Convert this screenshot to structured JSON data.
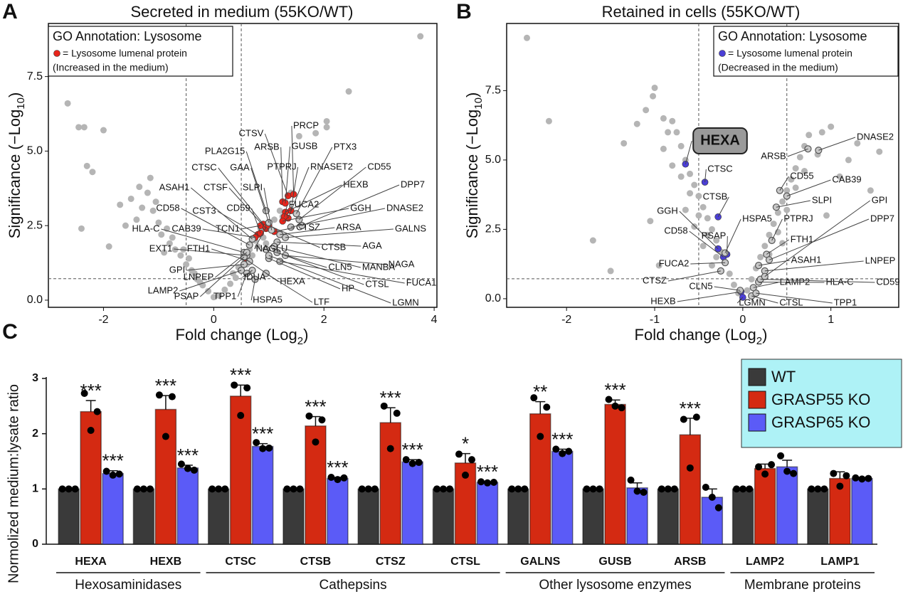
{
  "chart_data": [
    {
      "type": "scatter",
      "panel": "A",
      "title": "Secreted in medium (55KO/WT)",
      "x_label": [
        "Fold change (Log",
        "2",
        ")"
      ],
      "y_label": [
        "Significance (−Log",
        "10",
        ")"
      ],
      "xlim": [
        -3,
        4.05
      ],
      "ylim": [
        -0.24,
        9.28
      ],
      "xticks": [
        -2,
        0,
        2,
        4
      ],
      "yticks": [
        {
          "value": 0,
          "label": "0.0"
        },
        2.5,
        {
          "value": 5,
          "label": "5.0"
        },
        7.5
      ],
      "vlines": [
        -0.5,
        0.5
      ],
      "hline": 0.72,
      "legend": {
        "title": "GO Annotation: Lysosome",
        "entry": "= Lysosome lumenal protein",
        "note": "(Increased in the medium)"
      },
      "series": [
        {
          "color": "#b5b5b5",
          "marker": "filled",
          "x": [
            -2.65,
            -2.45,
            -2.35,
            -2.0,
            -2.3,
            -2.2,
            -2.4,
            -1.9,
            -1.15,
            3.75,
            2.45,
            2.05,
            2.05,
            1.85,
            1.55,
            -1.5,
            -1.3,
            -1.4,
            -1.2,
            -1.1,
            -1.0,
            -0.95,
            -0.8,
            -0.7,
            -0.6,
            -0.5,
            -0.4,
            -0.3,
            -0.2,
            -0.1,
            0.0,
            -0.85,
            -1.05,
            -0.75,
            -0.55,
            -0.45,
            -0.35,
            -0.25,
            0.1,
            0.2,
            0.3,
            0.4,
            0.5,
            0.6,
            0.7,
            0.8,
            0.9,
            1.0,
            1.1,
            1.2,
            1.3,
            0.65,
            0.75,
            0.85,
            0.55,
            1.4,
            1.25,
            0.95,
            -1.6,
            -1.7,
            -1.35,
            -0.9,
            0.35,
            0.45
          ],
          "y": [
            6.6,
            5.8,
            5.8,
            5.7,
            4.5,
            4.3,
            2.4,
            1.8,
            4.1,
            8.85,
            7.0,
            6.0,
            5.8,
            5.6,
            5.5,
            3.4,
            3.1,
            2.7,
            3.6,
            3.0,
            2.6,
            2.2,
            1.9,
            1.7,
            1.5,
            1.2,
            1.0,
            0.7,
            0.5,
            0.3,
            0.1,
            2.4,
            3.3,
            2.1,
            1.7,
            1.4,
            0.9,
            0.6,
            0.15,
            0.35,
            0.55,
            0.75,
            1.0,
            1.2,
            1.5,
            1.8,
            2.1,
            2.4,
            2.7,
            3.0,
            3.3,
            1.7,
            2.0,
            2.4,
            1.4,
            3.6,
            2.8,
            1.9,
            2.5,
            3.2,
            3.8,
            1.6,
            0.9,
            1.1
          ]
        },
        {
          "color": "#e8251b",
          "marker": "filled",
          "labels": [
            "CTSV",
            "PRCP",
            "ARSB",
            "GUSB",
            "PTPRJ",
            "RNASET2",
            "HEXB",
            "CTSC",
            "CTSF",
            "FUCA2",
            "GGH",
            "CST3",
            "CD59",
            "CTSZ",
            "CAB39",
            "TCN1",
            "NAGLU",
            "CTSB",
            "HEXA"
          ],
          "x": [
            1.35,
            1.45,
            1.25,
            1.3,
            1.4,
            1.35,
            1.3,
            0.9,
            0.95,
            1.28,
            1.25,
            0.8,
            0.85,
            1.1,
            0.75,
            0.85,
            0.95,
            1.0,
            0.6
          ],
          "y": [
            3.5,
            3.55,
            3.3,
            3.25,
            3.0,
            2.75,
            2.95,
            2.55,
            2.4,
            2.8,
            2.65,
            2.2,
            2.25,
            2.3,
            2.1,
            2.5,
            2.45,
            2.5,
            1.35
          ]
        },
        {
          "color": "#c8c8c8",
          "marker": "open",
          "labels": [
            "PLA2G15",
            "PTX3",
            "CD55",
            "DPP7",
            "GAA",
            "ASAH1",
            "SLPI",
            "DNASE2",
            "CD58",
            "ARSA",
            "GALNS",
            "HLA-C",
            "EXT1",
            "FTH1",
            "AGA",
            "NAGA",
            "GPI",
            "CLN5",
            "MANBA",
            "FUCA1",
            "LAMP2",
            "LNPEP",
            "IDUA",
            "HP",
            "CTSL",
            "PSAP",
            "TPP1",
            "HSPA5",
            "LTF",
            "LGMN"
          ],
          "x": [
            0.95,
            1.5,
            1.55,
            1.6,
            1.0,
            0.7,
            1.05,
            1.4,
            0.65,
            1.2,
            1.3,
            0.55,
            0.6,
            0.65,
            1.15,
            1.3,
            0.55,
            0.95,
            1.1,
            1.2,
            0.5,
            0.6,
            0.7,
            1.0,
            1.15,
            0.55,
            0.6,
            0.75,
            0.95,
            1.0
          ],
          "y": [
            3.0,
            2.9,
            2.7,
            2.5,
            2.6,
            2.05,
            2.35,
            2.45,
            1.85,
            2.2,
            2.1,
            1.6,
            1.5,
            1.3,
            1.95,
            1.5,
            1.2,
            1.7,
            1.8,
            1.3,
            1.0,
            1.6,
            1.0,
            1.4,
            1.6,
            1.45,
            0.9,
            0.7,
            0.9,
            1.5
          ]
        }
      ]
    },
    {
      "type": "scatter",
      "panel": "B",
      "title": "Retained in cells (55KO/WT)",
      "x_label": [
        "Fold change (Log",
        "2",
        ")"
      ],
      "y_label": [
        "Significance (−Log",
        "10",
        ")"
      ],
      "xlim": [
        -2.68,
        1.77
      ],
      "ylim": [
        -0.31,
        9.92
      ],
      "xticks": [
        -2,
        -1,
        0,
        1
      ],
      "yticks": [
        {
          "value": 0,
          "label": "0.0"
        },
        2.5,
        {
          "value": 5,
          "label": "5.0"
        },
        7.5
      ],
      "vlines": [
        -0.5,
        0.5
      ],
      "hline": 0.72,
      "legend": {
        "title": "GO Annotation: Lysosome",
        "entry": "= Lysosome lumenal protein",
        "note": "(Decreased in the medium)"
      },
      "series": [
        {
          "color": "#b5b5b5",
          "marker": "filled",
          "x": [
            -0.05,
            -0.1,
            -0.15,
            -0.2,
            -0.25,
            -0.3,
            -0.35,
            -0.4,
            -0.45,
            -0.5,
            -0.55,
            -0.6,
            -0.65,
            -0.7,
            -0.75,
            -0.8,
            -0.3,
            -0.4,
            -0.5,
            -0.6,
            -0.7,
            -0.55,
            -0.45,
            -0.35,
            -0.65,
            -0.8,
            -0.9,
            -2.45,
            -2.2,
            -1.0,
            -1.02,
            -1.1,
            -1.2,
            -1.35,
            -0.9,
            -0.85,
            -1.5,
            -1.7,
            -1.05,
            -0.95,
            0.05,
            0.1,
            0.15,
            0.2,
            0.25,
            0.3,
            0.35,
            0.4,
            0.45,
            0.5,
            0.55,
            0.6,
            0.65,
            0.7,
            0.75,
            0.3,
            0.4,
            0.5,
            0.6,
            0.7,
            0.45,
            0.85,
            1.55,
            1.3,
            1.2,
            1.0,
            0.9,
            1.1,
            1.45,
            0.95
          ],
          "y": [
            0.2,
            0.5,
            0.9,
            1.3,
            1.7,
            2.1,
            2.5,
            2.9,
            3.3,
            3.7,
            4.1,
            4.5,
            5.0,
            5.5,
            6.0,
            6.4,
            1.5,
            2.3,
            3.0,
            3.8,
            4.4,
            2.6,
            1.9,
            1.2,
            3.2,
            4.8,
            5.4,
            9.4,
            6.4,
            7.6,
            7.3,
            6.8,
            6.3,
            5.6,
            6.5,
            6.0,
            1.0,
            2.1,
            2.8,
            1.2,
            0.3,
            0.7,
            1.1,
            1.5,
            1.9,
            2.3,
            2.7,
            3.1,
            3.5,
            3.9,
            4.3,
            4.7,
            5.1,
            5.5,
            5.9,
            1.6,
            2.4,
            3.2,
            4.0,
            4.6,
            2.0,
            5.2,
            5.3,
            5.6,
            5.0,
            6.2,
            6.0,
            4.4,
            3.9,
            3.0
          ]
        },
        {
          "color": "#4b3fd6",
          "marker": "filled",
          "labels": [
            "HEXA",
            "CTSC",
            "CTSB",
            "GGH",
            "CD58",
            "PSAP",
            "HEXB",
            "LGMN"
          ],
          "x": [
            -0.65,
            -0.43,
            -0.28,
            -0.28,
            -0.22,
            -0.18,
            -0.02,
            0.0
          ],
          "y": [
            4.85,
            4.2,
            2.95,
            1.8,
            1.5,
            1.6,
            0.25,
            0.05
          ]
        },
        {
          "color": "#c8c8c8",
          "marker": "open",
          "labels": [
            "HSPA5",
            "FUCA2",
            "CTSZ",
            "CLN5",
            "CTSL",
            "TPP1",
            "LAMP2",
            "HLA-C",
            "CD59",
            "LNPEP",
            "ASAH1",
            "FTH1",
            "PTPRJ",
            "DPP7",
            "GPI",
            "SLPI",
            "CAB39",
            "CD55",
            "ARSB",
            "DNASE2"
          ],
          "x": [
            -0.2,
            -0.2,
            -0.25,
            -0.03,
            0.1,
            0.15,
            0.12,
            0.18,
            0.2,
            0.25,
            0.18,
            0.27,
            0.33,
            0.3,
            0.25,
            0.38,
            0.5,
            0.42,
            0.74,
            0.86
          ],
          "y": [
            1.65,
            1.3,
            1.0,
            0.3,
            0.1,
            0.2,
            0.4,
            0.6,
            0.7,
            1.0,
            1.2,
            1.6,
            2.1,
            1.4,
            0.8,
            3.3,
            3.7,
            3.9,
            5.4,
            5.35
          ]
        }
      ]
    },
    {
      "type": "bar",
      "panel": "C",
      "y_label": "Normolized medium:lysate ratio",
      "categories": [
        "HEXA",
        "HEXB",
        "CTSC",
        "CTSB",
        "CTSZ",
        "CTSL",
        "GALNS",
        "GUSB",
        "ARSB",
        "LAMP2",
        "LAMP1"
      ],
      "groups": [
        {
          "name": "Hexosaminidases",
          "categories": [
            "HEXA",
            "HEXB"
          ]
        },
        {
          "name": "Cathepsins",
          "categories": [
            "CTSC",
            "CTSB",
            "CTSZ",
            "CTSL"
          ]
        },
        {
          "name": "Other lysosome enzymes",
          "categories": [
            "GALNS",
            "GUSB",
            "ARSB"
          ]
        },
        {
          "name": "Membrane proteins",
          "categories": [
            "LAMP2",
            "LAMP1"
          ]
        }
      ],
      "ylim": [
        0,
        3
      ],
      "yticks": [
        0,
        1,
        2,
        3
      ],
      "legend": "upper right",
      "series": [
        {
          "name": "WT",
          "color": "#3a3a3a",
          "values": [
            1,
            1,
            1,
            1,
            1,
            1,
            1,
            1,
            1,
            1,
            1
          ],
          "points": [
            [
              1,
              1,
              1
            ],
            [
              1,
              1,
              1
            ],
            [
              1,
              1,
              1
            ],
            [
              1,
              1,
              1
            ],
            [
              1,
              1,
              1
            ],
            [
              1,
              1,
              1
            ],
            [
              1,
              1,
              1
            ],
            [
              1,
              1,
              1
            ],
            [
              1,
              1,
              1
            ],
            [
              1,
              1,
              1
            ],
            [
              1,
              1,
              1
            ]
          ]
        },
        {
          "name": "GRASP55 KO",
          "color": "#d42a12",
          "values": [
            2.4,
            2.44,
            2.68,
            2.14,
            2.2,
            1.47,
            2.36,
            2.53,
            1.98,
            1.37,
            1.19
          ],
          "errors": [
            0.2,
            0.25,
            0.2,
            0.17,
            0.27,
            0.17,
            0.22,
            0.08,
            0.3,
            0.08,
            0.12
          ],
          "points": [
            [
              2.73,
              2.06,
              2.4
            ],
            [
              2.7,
              1.95,
              2.67
            ],
            [
              2.88,
              2.33,
              2.83
            ],
            [
              2.32,
              1.85,
              2.25
            ],
            [
              2.5,
              1.73,
              2.37
            ],
            [
              1.63,
              1.25,
              1.53
            ],
            [
              2.65,
              1.95,
              2.48
            ],
            [
              2.62,
              2.5,
              2.47
            ],
            [
              2.26,
              1.38,
              2.3
            ],
            [
              1.4,
              1.27,
              1.44
            ],
            [
              1.28,
              1.05,
              1.24
            ]
          ],
          "significance": [
            "***",
            "***",
            "***",
            "***",
            "***",
            "*",
            "**",
            "***",
            "***",
            null,
            null
          ]
        },
        {
          "name": "GRASP65 KO",
          "color": "#5b5bf7",
          "values": [
            1.28,
            1.38,
            1.77,
            1.19,
            1.49,
            1.12,
            1.68,
            1.02,
            0.85,
            1.4,
            1.19
          ],
          "errors": [
            0.05,
            0.05,
            0.05,
            0.02,
            0.04,
            0.01,
            0.04,
            0.09,
            0.15,
            0.12,
            0.02
          ],
          "points": [
            [
              1.32,
              1.25,
              1.27
            ],
            [
              1.45,
              1.37,
              1.34
            ],
            [
              1.84,
              1.73,
              1.74
            ],
            [
              1.21,
              1.17,
              1.2
            ],
            [
              1.53,
              1.46,
              1.48
            ],
            [
              1.13,
              1.11,
              1.12
            ],
            [
              1.72,
              1.64,
              1.68
            ],
            [
              1.16,
              0.96,
              0.94
            ],
            [
              1.03,
              0.85,
              0.66
            ],
            [
              1.6,
              1.32,
              1.28
            ],
            [
              1.2,
              1.18,
              1.19
            ]
          ],
          "significance": [
            "***",
            "***",
            "***",
            "***",
            "***",
            "***",
            "***",
            null,
            null,
            null,
            null
          ]
        }
      ]
    }
  ]
}
